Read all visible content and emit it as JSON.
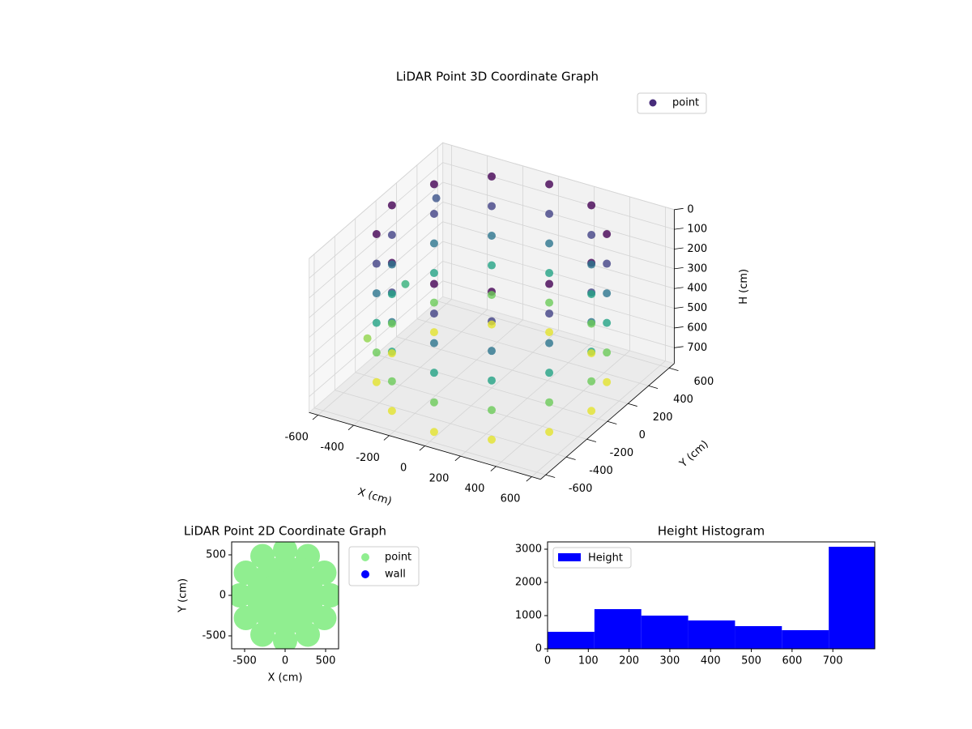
{
  "chart_data": [
    {
      "type": "scatter3d",
      "title": "LiDAR Point 3D Coordinate Graph",
      "xlabel": "X (cm)",
      "ylabel": "Y (cm)",
      "zlabel": "H (cm)",
      "xlim": [
        -650,
        650
      ],
      "ylim": [
        -650,
        650
      ],
      "zlim": [
        780,
        0
      ],
      "xticks": [
        -600,
        -400,
        -200,
        0,
        200,
        400,
        600
      ],
      "yticks": [
        -600,
        -400,
        -200,
        0,
        200,
        400,
        600
      ],
      "zticks": [
        0,
        100,
        200,
        300,
        400,
        500,
        600,
        700
      ],
      "legend": "upper right",
      "series": [
        {
          "name": "point",
          "color": "#472c7a",
          "colormap": "viridis",
          "x": [
            560,
            485,
            280,
            0,
            -280,
            -485,
            -560,
            -485,
            -280,
            0,
            280,
            485,
            560,
            485,
            280,
            0,
            -280,
            -485,
            -560,
            -485,
            -280,
            0,
            280,
            485,
            560,
            485,
            280,
            0,
            -280,
            -485,
            -560,
            -485,
            -280,
            0,
            280,
            485,
            560,
            485,
            280,
            0,
            -280,
            -485,
            -560,
            -485,
            -280,
            0,
            280,
            485,
            560,
            485,
            280,
            0,
            -280,
            -485,
            -560,
            -485,
            -280,
            0,
            280,
            485,
            560,
            485,
            280,
            0,
            -280,
            -485,
            -560,
            -485,
            -280,
            0,
            280,
            485,
            -600,
            -640,
            -600
          ],
          "y": [
            0,
            280,
            485,
            560,
            485,
            280,
            0,
            -280,
            -485,
            -560,
            -485,
            -280,
            0,
            280,
            485,
            560,
            485,
            280,
            0,
            -280,
            -485,
            -560,
            -485,
            -280,
            0,
            280,
            485,
            560,
            485,
            280,
            0,
            -280,
            -485,
            -560,
            -485,
            -280,
            0,
            280,
            485,
            560,
            485,
            280,
            0,
            -280,
            -485,
            -560,
            -485,
            -280,
            0,
            280,
            485,
            560,
            485,
            280,
            0,
            -280,
            -485,
            -560,
            -485,
            -280,
            0,
            280,
            485,
            560,
            485,
            280,
            0,
            -280,
            -485,
            -560,
            -485,
            -280,
            500,
            -100,
            200
          ],
          "z": [
            0,
            0,
            0,
            0,
            0,
            0,
            0,
            0,
            0,
            0,
            0,
            0,
            150,
            150,
            150,
            150,
            150,
            150,
            150,
            150,
            150,
            150,
            150,
            150,
            300,
            300,
            300,
            300,
            300,
            300,
            300,
            300,
            300,
            300,
            300,
            300,
            450,
            450,
            450,
            450,
            450,
            450,
            450,
            450,
            450,
            450,
            450,
            450,
            600,
            600,
            600,
            600,
            600,
            600,
            600,
            600,
            600,
            600,
            600,
            600,
            750,
            750,
            750,
            750,
            750,
            750,
            750,
            750,
            750,
            750,
            750,
            750,
            200,
            650,
            500
          ]
        }
      ]
    },
    {
      "type": "scatter",
      "title": "LiDAR Point 2D Coordinate Graph",
      "xlabel": "X (cm)",
      "ylabel": "Y (cm)",
      "xlim": [
        -660,
        660
      ],
      "ylim": [
        -660,
        660
      ],
      "xticks": [
        -500,
        0,
        500
      ],
      "yticks": [
        -500,
        0,
        500
      ],
      "legend": "outside right",
      "series": [
        {
          "name": "point",
          "color": "#90ee90",
          "x": [
            560,
            485,
            280,
            0,
            -280,
            -485,
            -560,
            -485,
            -280,
            0,
            280,
            485,
            373,
            323,
            187,
            0,
            -187,
            -323,
            -373,
            -323,
            -187,
            0,
            187,
            323,
            187,
            162,
            93,
            0,
            -93,
            -162,
            -187,
            -162,
            -93,
            0,
            93,
            162,
            0
          ],
          "y": [
            0,
            280,
            485,
            560,
            485,
            280,
            0,
            -280,
            -485,
            -560,
            -485,
            -280,
            0,
            187,
            323,
            373,
            323,
            187,
            0,
            -187,
            -323,
            -373,
            -323,
            -187,
            0,
            93,
            162,
            187,
            162,
            93,
            0,
            -93,
            -162,
            -187,
            -162,
            -93,
            0
          ]
        },
        {
          "name": "wall",
          "color": "#0000ff",
          "x": [],
          "y": []
        }
      ]
    },
    {
      "type": "histogram",
      "title": "Height Histogram",
      "bins": [
        0,
        115,
        230,
        345,
        460,
        575,
        690,
        803
      ],
      "values": [
        512,
        1195,
        1000,
        854,
        683,
        561,
        3073
      ],
      "series_name": "Height",
      "color": "#0000ff",
      "xlim": [
        0,
        803
      ],
      "ylim": [
        0,
        3220
      ],
      "xticks": [
        0,
        100,
        200,
        300,
        400,
        500,
        600,
        700
      ],
      "yticks": [
        0,
        1000,
        2000,
        3000
      ],
      "legend": "upper left"
    }
  ]
}
